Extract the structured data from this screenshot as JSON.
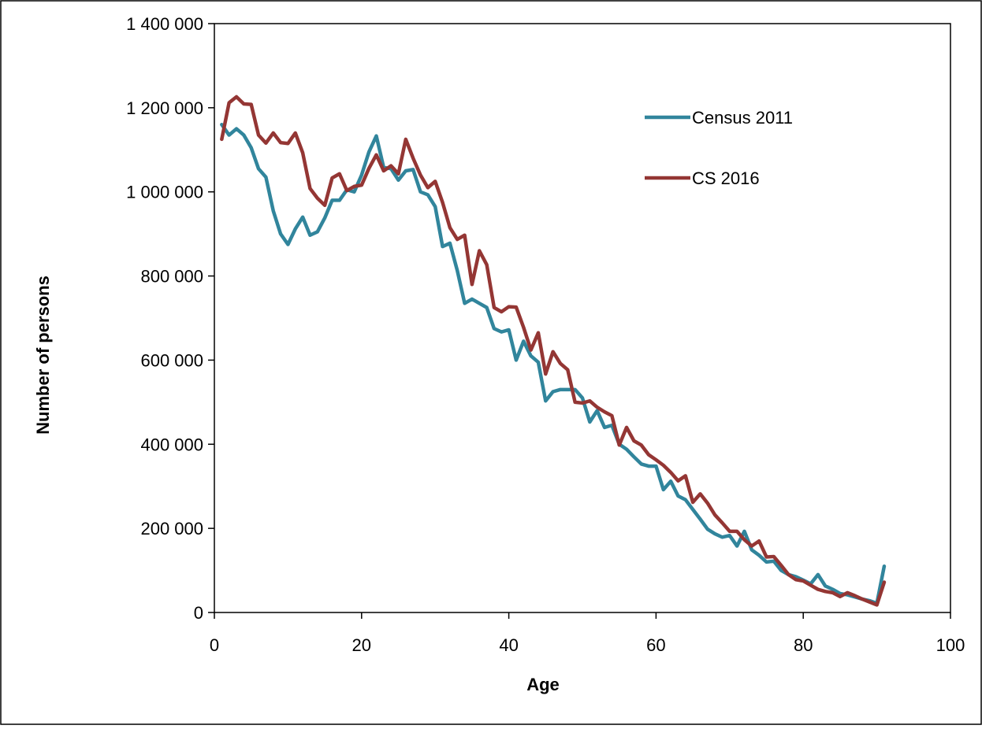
{
  "chart_data": {
    "type": "line",
    "xlabel": "Age",
    "ylabel": "Number of persons",
    "xlim": [
      0,
      100
    ],
    "ylim": [
      0,
      1400000
    ],
    "xticks": [
      0,
      20,
      40,
      60,
      80,
      100
    ],
    "yticks": [
      0,
      200000,
      400000,
      600000,
      800000,
      1000000,
      1200000,
      1400000
    ],
    "xtick_labels": [
      "0",
      "20",
      "40",
      "60",
      "80",
      "100"
    ],
    "ytick_labels": [
      "0",
      "200 000",
      "400 000",
      "600 000",
      "800 000",
      "1 000 000",
      "1 200 000",
      "1 400 000"
    ],
    "grid": false,
    "legend_position": "upper-right (inside plot)",
    "x": [
      1,
      2,
      3,
      4,
      5,
      6,
      7,
      8,
      9,
      10,
      11,
      12,
      13,
      14,
      15,
      16,
      17,
      18,
      19,
      20,
      21,
      22,
      23,
      24,
      25,
      26,
      27,
      28,
      29,
      30,
      31,
      32,
      33,
      34,
      35,
      36,
      37,
      38,
      39,
      40,
      41,
      42,
      43,
      44,
      45,
      46,
      47,
      48,
      49,
      50,
      51,
      52,
      53,
      54,
      55,
      56,
      57,
      58,
      59,
      60,
      61,
      62,
      63,
      64,
      65,
      66,
      67,
      68,
      69,
      70,
      71,
      72,
      73,
      74,
      75,
      76,
      77,
      78,
      79,
      80,
      81,
      82,
      83,
      84,
      85,
      86,
      87,
      88,
      89,
      90,
      91
    ],
    "series": [
      {
        "name": "Census 2011",
        "color": "#31859c",
        "values": [
          1160000,
          1135000,
          1150000,
          1135000,
          1105000,
          1055000,
          1035000,
          955000,
          900000,
          875000,
          912000,
          940000,
          897000,
          905000,
          938000,
          980000,
          980000,
          1005000,
          1000000,
          1040000,
          1095000,
          1133000,
          1058000,
          1055000,
          1028000,
          1050000,
          1053000,
          1000000,
          993000,
          965000,
          870000,
          878000,
          813000,
          735000,
          745000,
          735000,
          725000,
          675000,
          667000,
          672000,
          600000,
          645000,
          610000,
          595000,
          503000,
          525000,
          530000,
          530000,
          530000,
          510000,
          453000,
          480000,
          440000,
          445000,
          400000,
          388000,
          370000,
          353000,
          348000,
          348000,
          292000,
          312000,
          277000,
          268000,
          245000,
          222000,
          198000,
          187000,
          179000,
          183000,
          158000,
          193000,
          149000,
          136000,
          120000,
          122000,
          100000,
          90000,
          85000,
          77000,
          68000,
          90000,
          63000,
          55000,
          45000,
          42000,
          37000,
          32000,
          28000,
          22000,
          110000
        ]
      },
      {
        "name": "CS 2016",
        "color": "#943634",
        "values": [
          1125000,
          1212000,
          1226000,
          1209000,
          1208000,
          1135000,
          1116000,
          1140000,
          1117000,
          1115000,
          1140000,
          1093000,
          1008000,
          985000,
          968000,
          1033000,
          1043000,
          1003000,
          1013000,
          1016000,
          1056000,
          1088000,
          1050000,
          1062000,
          1043000,
          1125000,
          1080000,
          1040000,
          1010000,
          1025000,
          975000,
          915000,
          887000,
          897000,
          780000,
          860000,
          827000,
          725000,
          715000,
          727000,
          726000,
          678000,
          624000,
          665000,
          567000,
          620000,
          592000,
          577000,
          500000,
          498000,
          503000,
          488000,
          477000,
          468000,
          398000,
          440000,
          408000,
          398000,
          375000,
          363000,
          350000,
          333000,
          313000,
          325000,
          262000,
          282000,
          260000,
          232000,
          213000,
          193000,
          193000,
          173000,
          158000,
          170000,
          132000,
          133000,
          112000,
          90000,
          78000,
          75000,
          65000,
          55000,
          50000,
          47000,
          38000,
          47000,
          40000,
          32000,
          25000,
          18000,
          72000
        ]
      }
    ]
  }
}
